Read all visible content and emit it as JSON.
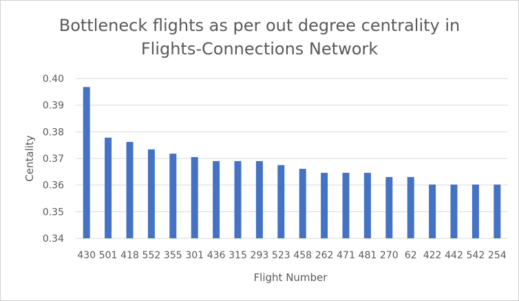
{
  "chart_data": {
    "type": "bar",
    "title": "Bottleneck flights as per out degree centrality in Flights-Connections Network",
    "title_lines": [
      "Bottleneck flights as per out degree centrality in",
      "Flights-Connections Network"
    ],
    "xlabel": "Flight Number",
    "ylabel": "Centality",
    "categories": [
      "430",
      "501",
      "418",
      "552",
      "355",
      "301",
      "436",
      "315",
      "293",
      "523",
      "458",
      "262",
      "471",
      "481",
      "270",
      "62",
      "422",
      "442",
      "542",
      "254"
    ],
    "values": [
      0.3968,
      0.3778,
      0.3762,
      0.3734,
      0.3718,
      0.3705,
      0.369,
      0.369,
      0.369,
      0.3675,
      0.3661,
      0.3646,
      0.3646,
      0.3646,
      0.363,
      0.363,
      0.3602,
      0.3602,
      0.3602,
      0.3602
    ],
    "ylim": [
      0.34,
      0.4
    ],
    "yticks": [
      "0.34",
      "0.35",
      "0.36",
      "0.37",
      "0.38",
      "0.39",
      "0.40"
    ],
    "bar_color": "#4472c4",
    "grid": true,
    "legend": "none"
  }
}
